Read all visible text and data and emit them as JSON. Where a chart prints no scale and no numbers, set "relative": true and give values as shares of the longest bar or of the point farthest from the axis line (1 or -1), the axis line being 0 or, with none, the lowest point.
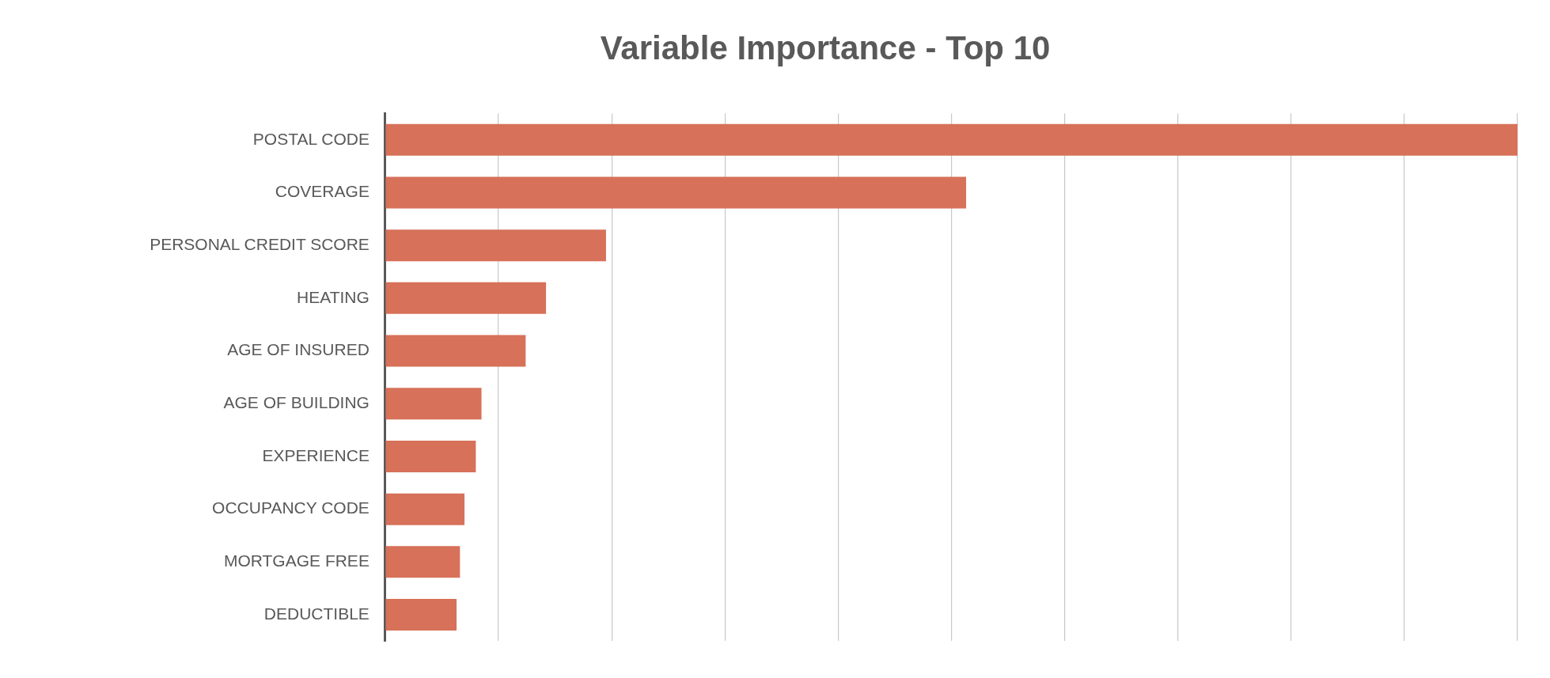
{
  "chart_data": {
    "type": "bar",
    "orientation": "horizontal",
    "relative": true,
    "title": "Variable Importance - Top 10",
    "categories": [
      "POSTAL CODE",
      "COVERAGE",
      "PERSONAL CREDIT SCORE",
      "HEATING",
      "AGE OF INSURED",
      "AGE OF BUILDING",
      "EXPERIENCE",
      "OCCUPANCY CODE",
      "MORTGAGE FREE",
      "DEDUCTIBLE"
    ],
    "values": [
      1,
      0.513,
      0.195,
      0.142,
      0.124,
      0.085,
      0.08,
      0.07,
      0.066,
      0.063
    ],
    "color": "#d77159",
    "grid": "x",
    "legend": false
  }
}
